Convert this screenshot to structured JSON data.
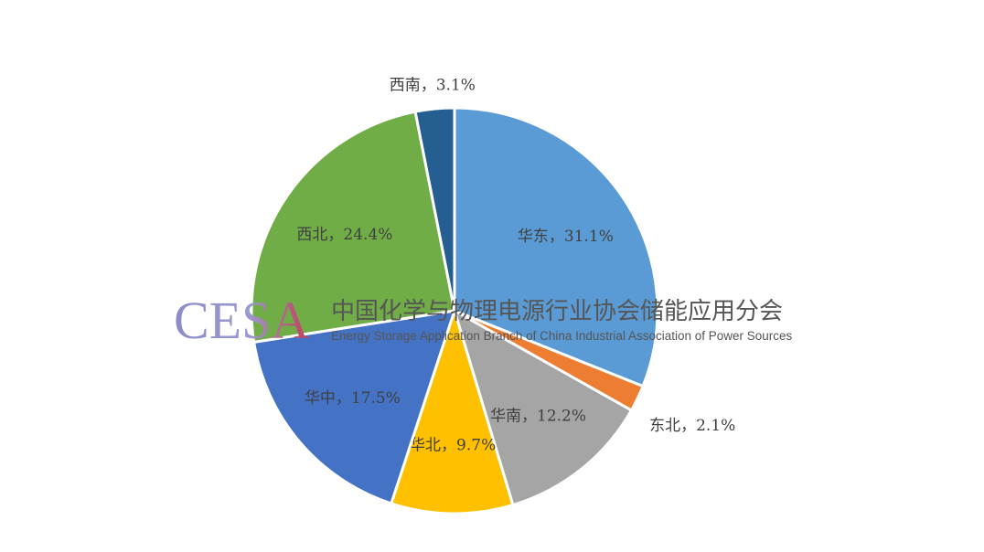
{
  "chart_data": {
    "type": "pie",
    "title": "",
    "start_angle": "top",
    "direction": "clockwise",
    "slices": [
      {
        "label": "华东，31.1%",
        "category": "华东",
        "value": 31.1,
        "color": "#5B9BD5",
        "label_placement": "inside"
      },
      {
        "label": "东北，2.1%",
        "category": "东北",
        "value": 2.1,
        "color": "#ED7D31",
        "label_placement": "outside"
      },
      {
        "label": "华南，12.2%",
        "category": "华南",
        "value": 12.2,
        "color": "#A5A5A5",
        "label_placement": "inside"
      },
      {
        "label": "华北，9.7%",
        "category": "华北",
        "value": 9.7,
        "color": "#FFC000",
        "label_placement": "inside"
      },
      {
        "label": "华中，17.5%",
        "category": "华中",
        "value": 17.5,
        "color": "#4472C4",
        "label_placement": "inside"
      },
      {
        "label": "西北，24.4%",
        "category": "西北",
        "value": 24.4,
        "color": "#70AD47",
        "label_placement": "inside"
      },
      {
        "label": "西南，3.1%",
        "category": "西南",
        "value": 3.1,
        "color": "#255E91",
        "label_placement": "outside"
      }
    ]
  },
  "watermark": {
    "logo": "CESA",
    "name_cn": "中国化学与物理电源行业协会储能应用分会",
    "name_en": "Energy Storage Application Branch of China Industrial Association of Power Sources"
  }
}
